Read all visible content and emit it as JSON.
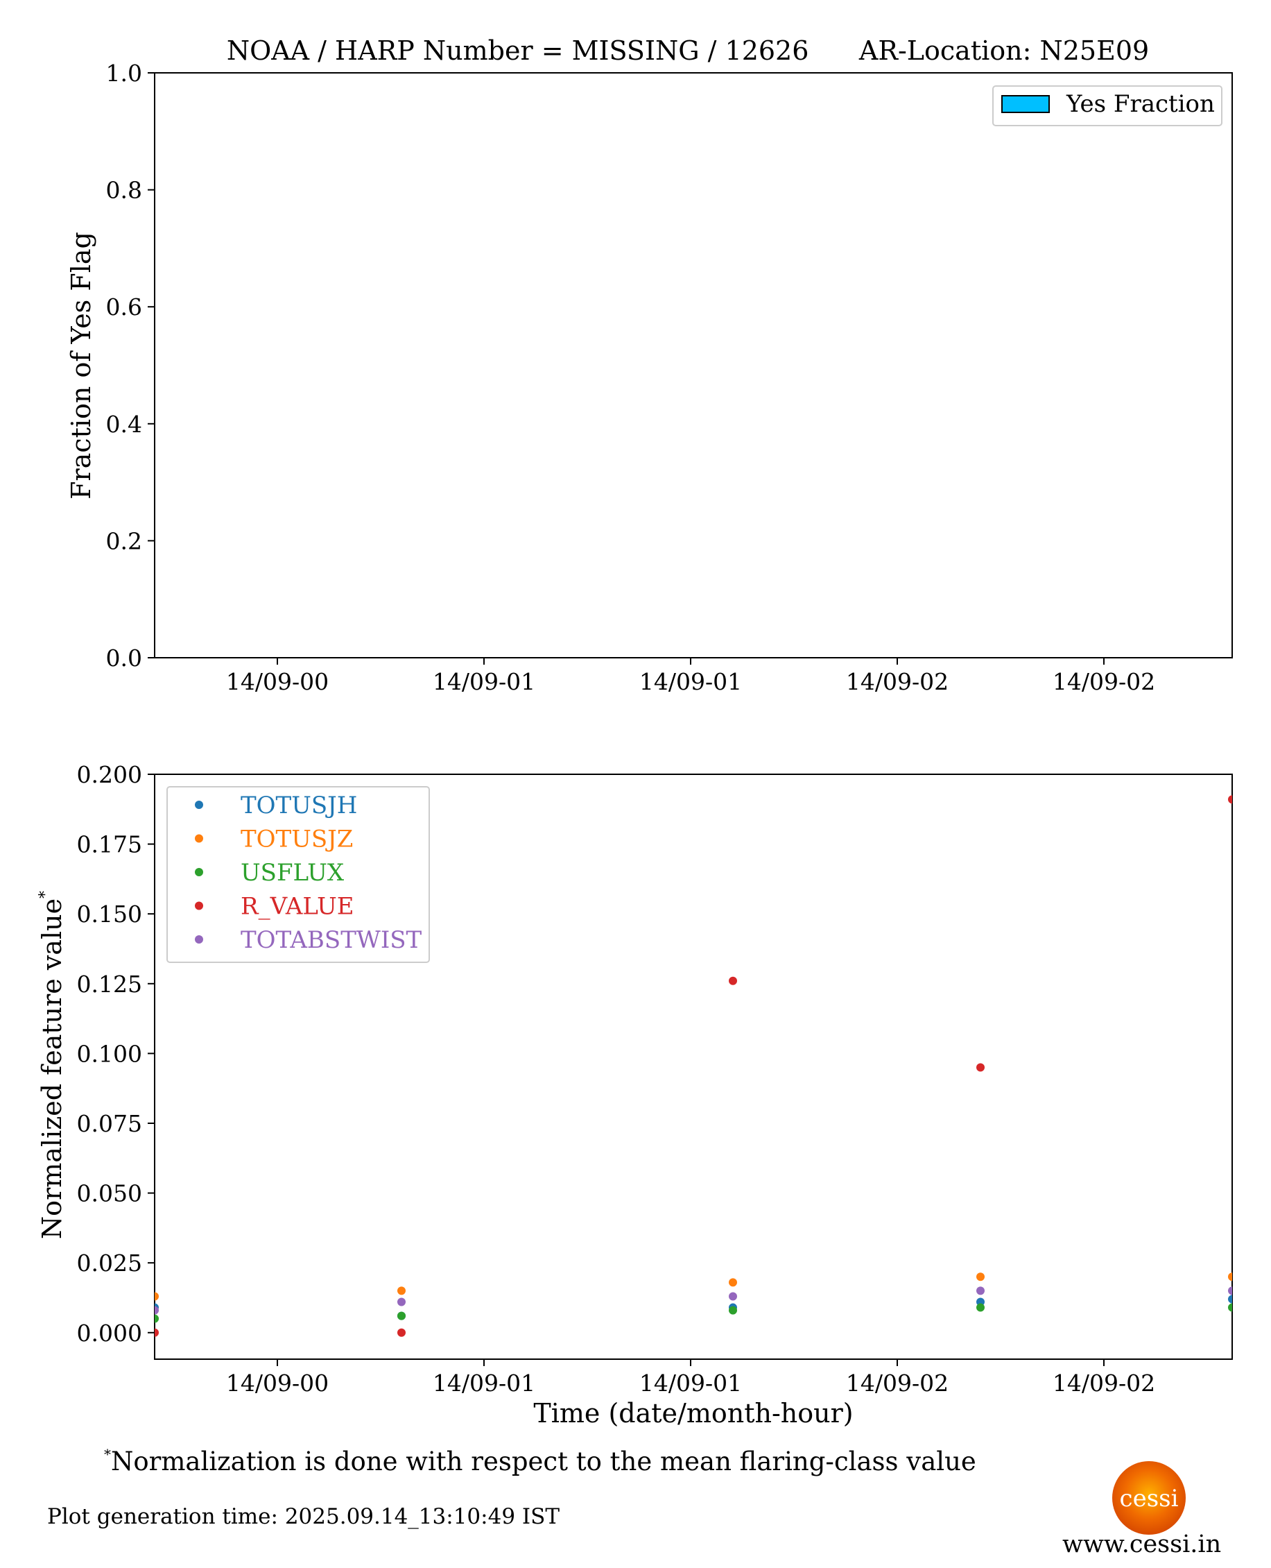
{
  "chart_data": [
    {
      "type": "bar",
      "title": "NOAA / HARP Number = MISSING / 12626      AR-Location: N25E09",
      "ylabel": "Fraction of Yes Flag",
      "ylim": [
        0,
        1
      ],
      "y_ticks": [
        "0.0",
        "0.2",
        "0.4",
        "0.6",
        "0.8",
        "1.0"
      ],
      "x_ticks": [
        "14/09-00",
        "14/09-01",
        "14/09-01",
        "14/09-02",
        "14/09-02"
      ],
      "legend": {
        "placement": "top-right",
        "entries": [
          {
            "name": "Yes Fraction",
            "color": "#00bfff"
          }
        ]
      },
      "series": [
        {
          "name": "Yes Fraction",
          "values": []
        }
      ]
    },
    {
      "type": "scatter",
      "ylabel": "Normalized feature value",
      "ylabel_sup": "*",
      "xlabel": "Time (date/month-hour)",
      "ylim": [
        -0.0095,
        0.2
      ],
      "y_ticks": [
        "0.000",
        "0.025",
        "0.050",
        "0.075",
        "0.100",
        "0.125",
        "0.150",
        "0.175",
        "0.200"
      ],
      "x_ticks": [
        "14/09-00",
        "14/09-01",
        "14/09-01",
        "14/09-02",
        "14/09-02"
      ],
      "legend": {
        "placement": "top-left"
      },
      "series": [
        {
          "name": "TOTUSJH",
          "color": "#1f77b4",
          "values": [
            0.009,
            0.006,
            0.009,
            0.011,
            0.012
          ]
        },
        {
          "name": "TOTUSJZ",
          "color": "#ff7f0e",
          "values": [
            0.013,
            0.015,
            0.018,
            0.02,
            0.02
          ]
        },
        {
          "name": "USFLUX",
          "color": "#2ca02c",
          "values": [
            0.005,
            0.006,
            0.008,
            0.009,
            0.009
          ]
        },
        {
          "name": "R_VALUE",
          "color": "#d62728",
          "values": [
            0.0,
            0.0,
            0.126,
            0.095,
            0.191
          ]
        },
        {
          "name": "TOTABSTWIST",
          "color": "#9467bd",
          "values": [
            0.008,
            0.011,
            0.013,
            0.015,
            0.015
          ]
        }
      ]
    }
  ],
  "footnote": {
    "marker": "*",
    "text": "Normalization is done with respect to the mean flaring-class value"
  },
  "generation_time": "Plot generation time: 2025.09.14_13:10:49 IST",
  "logo": {
    "text": "cessi"
  },
  "website": "www.cessi.in"
}
